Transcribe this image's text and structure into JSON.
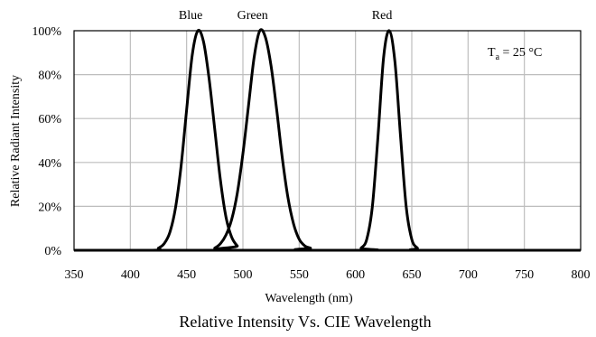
{
  "chart_data": {
    "type": "line",
    "title": "",
    "caption": "Relative Intensity Vs. CIE Wavelength",
    "xlabel": "Wavelength (nm)",
    "ylabel": "Relative Radiant Intensity",
    "xlim": [
      350,
      800
    ],
    "ylim": [
      0,
      100
    ],
    "x_ticks": [
      350,
      400,
      450,
      500,
      550,
      600,
      650,
      700,
      750,
      800
    ],
    "y_ticks": [
      0,
      20,
      40,
      60,
      80,
      100
    ],
    "y_tick_labels": [
      "0%",
      "20%",
      "40%",
      "60%",
      "80%",
      "100%"
    ],
    "grid": true,
    "annotation": {
      "base": "T",
      "sub": "a",
      "rest": " = 25 °C"
    },
    "series": [
      {
        "name": "Blue",
        "color": "#000000",
        "x": [
          420,
          425,
          430,
          435,
          440,
          445,
          450,
          455,
          460,
          465,
          470,
          475,
          480,
          485,
          490,
          495,
          500
        ],
        "y": [
          0,
          1,
          3,
          8,
          19,
          38,
          64,
          89,
          100,
          95,
          78,
          55,
          32,
          15,
          6,
          2,
          0
        ]
      },
      {
        "name": "Green",
        "color": "#000000",
        "x": [
          470,
          475,
          480,
          485,
          490,
          495,
          500,
          505,
          510,
          515,
          520,
          525,
          530,
          535,
          540,
          545,
          550,
          555,
          560,
          565
        ],
        "y": [
          0,
          1,
          3,
          7,
          14,
          26,
          44,
          66,
          88,
          100,
          97,
          84,
          64,
          42,
          24,
          12,
          5,
          2,
          1,
          0
        ]
      },
      {
        "name": "Red",
        "color": "#000000",
        "x": [
          600,
          605,
          610,
          615,
          620,
          625,
          630,
          635,
          640,
          645,
          650,
          655,
          660
        ],
        "y": [
          0,
          1,
          5,
          20,
          52,
          88,
          100,
          86,
          52,
          20,
          5,
          1,
          0
        ]
      }
    ]
  }
}
